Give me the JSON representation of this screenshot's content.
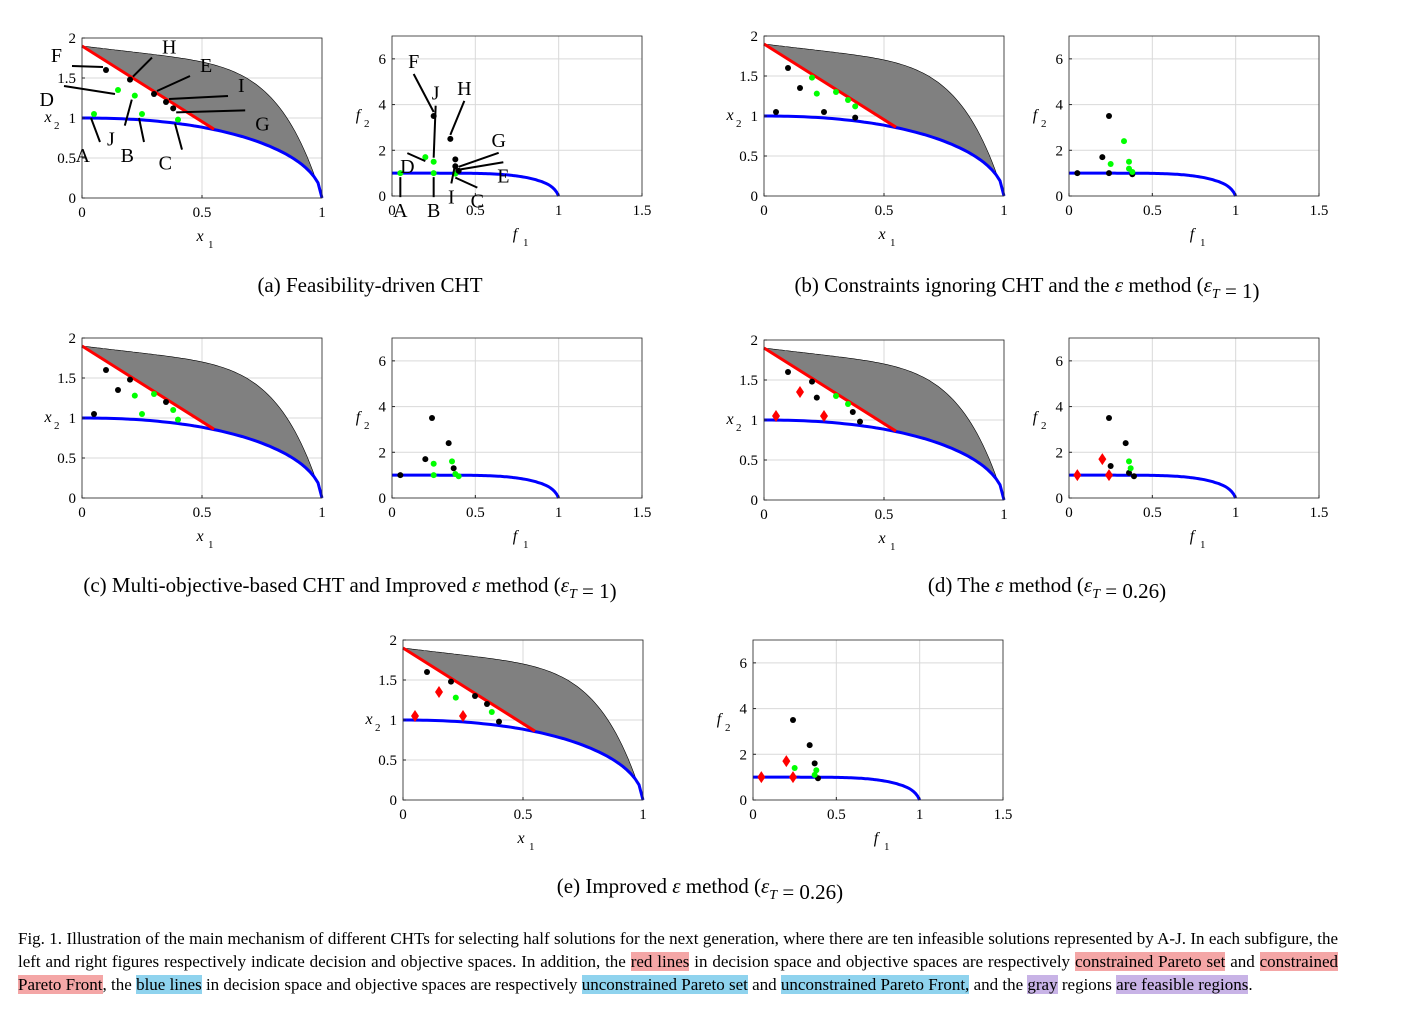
{
  "colors": {
    "constrained": "#ff0000",
    "unconstrained": "#0000ff",
    "feasible": "#808080",
    "infeasible_selected": "#00ff00",
    "infeasible_other": "#000000",
    "diamond": "#ff0000",
    "highlight_red": "#f4a6a6",
    "highlight_blue": "#8fd3ee",
    "highlight_purple": "#c8b3e6"
  },
  "axes_text": {
    "decision": {
      "xlabel": "x",
      "xlabel_sub": "1",
      "ylabel": "x",
      "ylabel_sub": "2",
      "xticks": [
        "0",
        "0.5",
        "1"
      ],
      "yticks": [
        "0",
        "0.5",
        "1",
        "1.5",
        "2"
      ]
    },
    "objective": {
      "xlabel": "f",
      "xlabel_sub": "1",
      "ylabel": "f",
      "ylabel_sub": "2",
      "xticks": [
        "0",
        "0.5",
        "1",
        "1.5"
      ],
      "yticks": [
        "0",
        "2",
        "4",
        "6"
      ]
    }
  },
  "chart_data": [
    {
      "id": "a",
      "caption": "(a) Feasibility-driven CHT",
      "decision": {
        "type": "scatter",
        "xlim": [
          0,
          1
        ],
        "ylim": [
          0,
          2
        ],
        "grid": true,
        "points": [
          {
            "label": "A",
            "x": 0.05,
            "y": 1.05,
            "c": "green"
          },
          {
            "label": "B",
            "x": 0.25,
            "y": 1.05,
            "c": "green"
          },
          {
            "label": "C",
            "x": 0.4,
            "y": 0.98,
            "c": "green"
          },
          {
            "label": "D",
            "x": 0.15,
            "y": 1.35,
            "c": "green"
          },
          {
            "label": "J",
            "x": 0.22,
            "y": 1.28,
            "c": "green"
          },
          {
            "label": "F",
            "x": 0.1,
            "y": 1.6,
            "c": "black"
          },
          {
            "label": "H",
            "x": 0.2,
            "y": 1.48,
            "c": "black"
          },
          {
            "label": "E",
            "x": 0.3,
            "y": 1.3,
            "c": "black"
          },
          {
            "label": "I",
            "x": 0.35,
            "y": 1.2,
            "c": "black"
          },
          {
            "label": "G",
            "x": 0.38,
            "y": 1.12,
            "c": "black"
          }
        ]
      },
      "objective": {
        "type": "scatter",
        "xlim": [
          0,
          1.5
        ],
        "ylim": [
          0,
          7
        ],
        "grid": true,
        "points": [
          {
            "label": "A",
            "x": 0.05,
            "y": 1.0,
            "c": "green"
          },
          {
            "label": "B",
            "x": 0.25,
            "y": 1.0,
            "c": "green"
          },
          {
            "label": "C",
            "x": 0.38,
            "y": 0.98,
            "c": "green"
          },
          {
            "label": "D",
            "x": 0.2,
            "y": 1.7,
            "c": "green"
          },
          {
            "label": "J",
            "x": 0.25,
            "y": 1.5,
            "c": "green"
          },
          {
            "label": "F",
            "x": 0.25,
            "y": 3.5,
            "c": "black"
          },
          {
            "label": "H",
            "x": 0.35,
            "y": 2.5,
            "c": "black"
          },
          {
            "label": "I",
            "x": 0.38,
            "y": 1.6,
            "c": "black"
          },
          {
            "label": "E",
            "x": 0.38,
            "y": 1.3,
            "c": "black"
          },
          {
            "label": "G",
            "x": 0.4,
            "y": 1.1,
            "c": "black"
          }
        ]
      },
      "annotations_decision": [
        "F",
        "H",
        "E",
        "I",
        "D",
        "G",
        "A",
        "J",
        "B",
        "C"
      ],
      "annotations_objective": [
        "F",
        "J",
        "H",
        "G",
        "D",
        "E",
        "A",
        "B",
        "I",
        "C"
      ]
    },
    {
      "id": "b",
      "caption_pre": "(b) Constraints ignoring CHT and the ",
      "caption_eps": "ε",
      "caption_mid": " method (",
      "caption_epsT": "ε",
      "caption_sub": "T",
      "caption_post": " = 1)",
      "decision": {
        "type": "scatter",
        "xlim": [
          0,
          1
        ],
        "ylim": [
          0,
          2
        ],
        "grid": true,
        "points": [
          {
            "x": 0.05,
            "y": 1.05,
            "c": "black"
          },
          {
            "x": 0.1,
            "y": 1.6,
            "c": "black"
          },
          {
            "x": 0.15,
            "y": 1.35,
            "c": "black"
          },
          {
            "x": 0.25,
            "y": 1.05,
            "c": "black"
          },
          {
            "x": 0.38,
            "y": 0.98,
            "c": "black"
          },
          {
            "x": 0.2,
            "y": 1.48,
            "c": "green"
          },
          {
            "x": 0.22,
            "y": 1.28,
            "c": "green"
          },
          {
            "x": 0.3,
            "y": 1.3,
            "c": "green"
          },
          {
            "x": 0.35,
            "y": 1.2,
            "c": "green"
          },
          {
            "x": 0.38,
            "y": 1.12,
            "c": "green"
          }
        ]
      },
      "objective": {
        "type": "scatter",
        "xlim": [
          0,
          1.5
        ],
        "ylim": [
          0,
          7
        ],
        "grid": true,
        "points": [
          {
            "x": 0.05,
            "y": 1.0,
            "c": "black"
          },
          {
            "x": 0.2,
            "y": 1.7,
            "c": "black"
          },
          {
            "x": 0.24,
            "y": 3.5,
            "c": "black"
          },
          {
            "x": 0.24,
            "y": 1.0,
            "c": "black"
          },
          {
            "x": 0.38,
            "y": 0.95,
            "c": "black"
          },
          {
            "x": 0.25,
            "y": 1.4,
            "c": "green"
          },
          {
            "x": 0.33,
            "y": 2.4,
            "c": "green"
          },
          {
            "x": 0.36,
            "y": 1.5,
            "c": "green"
          },
          {
            "x": 0.36,
            "y": 1.2,
            "c": "green"
          },
          {
            "x": 0.38,
            "y": 1.05,
            "c": "green"
          }
        ]
      }
    },
    {
      "id": "c",
      "caption_pre": "(c) Multi-objective-based CHT and Improved ",
      "caption_eps": "ε",
      "caption_mid": " method (",
      "caption_epsT": "ε",
      "caption_sub": "T",
      "caption_post": " = 1)",
      "decision": {
        "type": "scatter",
        "xlim": [
          0,
          1
        ],
        "ylim": [
          0,
          2
        ],
        "grid": true,
        "points": [
          {
            "x": 0.05,
            "y": 1.05,
            "c": "black"
          },
          {
            "x": 0.1,
            "y": 1.6,
            "c": "black"
          },
          {
            "x": 0.15,
            "y": 1.35,
            "c": "black"
          },
          {
            "x": 0.2,
            "y": 1.48,
            "c": "black"
          },
          {
            "x": 0.35,
            "y": 1.2,
            "c": "black"
          },
          {
            "x": 0.22,
            "y": 1.28,
            "c": "green"
          },
          {
            "x": 0.25,
            "y": 1.05,
            "c": "green"
          },
          {
            "x": 0.3,
            "y": 1.3,
            "c": "green"
          },
          {
            "x": 0.38,
            "y": 1.1,
            "c": "green"
          },
          {
            "x": 0.4,
            "y": 0.98,
            "c": "green"
          }
        ]
      },
      "objective": {
        "type": "scatter",
        "xlim": [
          0,
          1.5
        ],
        "ylim": [
          0,
          7
        ],
        "grid": true,
        "points": [
          {
            "x": 0.05,
            "y": 1.0,
            "c": "black"
          },
          {
            "x": 0.2,
            "y": 1.7,
            "c": "black"
          },
          {
            "x": 0.24,
            "y": 3.5,
            "c": "black"
          },
          {
            "x": 0.34,
            "y": 2.4,
            "c": "black"
          },
          {
            "x": 0.37,
            "y": 1.3,
            "c": "black"
          },
          {
            "x": 0.25,
            "y": 1.5,
            "c": "green"
          },
          {
            "x": 0.25,
            "y": 1.0,
            "c": "green"
          },
          {
            "x": 0.36,
            "y": 1.6,
            "c": "green"
          },
          {
            "x": 0.38,
            "y": 1.05,
            "c": "green"
          },
          {
            "x": 0.4,
            "y": 0.95,
            "c": "green"
          }
        ]
      }
    },
    {
      "id": "d",
      "caption_pre": "(d) The ",
      "caption_eps": "ε",
      "caption_mid": " method (",
      "caption_epsT": "ε",
      "caption_sub": "T",
      "caption_post": " = 0.26)",
      "decision": {
        "type": "scatter",
        "xlim": [
          0,
          1
        ],
        "ylim": [
          0,
          2
        ],
        "grid": true,
        "points": [
          {
            "x": 0.05,
            "y": 1.05,
            "c": "diamond"
          },
          {
            "x": 0.15,
            "y": 1.35,
            "c": "diamond"
          },
          {
            "x": 0.25,
            "y": 1.05,
            "c": "diamond"
          },
          {
            "x": 0.1,
            "y": 1.6,
            "c": "black"
          },
          {
            "x": 0.2,
            "y": 1.48,
            "c": "black"
          },
          {
            "x": 0.22,
            "y": 1.28,
            "c": "black"
          },
          {
            "x": 0.37,
            "y": 1.1,
            "c": "black"
          },
          {
            "x": 0.4,
            "y": 0.98,
            "c": "black"
          },
          {
            "x": 0.3,
            "y": 1.3,
            "c": "green"
          },
          {
            "x": 0.35,
            "y": 1.2,
            "c": "green"
          }
        ]
      },
      "objective": {
        "type": "scatter",
        "xlim": [
          0,
          1.5
        ],
        "ylim": [
          0,
          7
        ],
        "grid": true,
        "points": [
          {
            "x": 0.05,
            "y": 1.0,
            "c": "diamond"
          },
          {
            "x": 0.2,
            "y": 1.7,
            "c": "diamond"
          },
          {
            "x": 0.24,
            "y": 1.0,
            "c": "diamond"
          },
          {
            "x": 0.24,
            "y": 3.5,
            "c": "black"
          },
          {
            "x": 0.25,
            "y": 1.4,
            "c": "black"
          },
          {
            "x": 0.34,
            "y": 2.4,
            "c": "black"
          },
          {
            "x": 0.36,
            "y": 1.1,
            "c": "black"
          },
          {
            "x": 0.39,
            "y": 0.95,
            "c": "black"
          },
          {
            "x": 0.36,
            "y": 1.6,
            "c": "green"
          },
          {
            "x": 0.37,
            "y": 1.3,
            "c": "green"
          }
        ]
      }
    },
    {
      "id": "e",
      "caption_pre": "(e) Improved ",
      "caption_eps": "ε",
      "caption_mid": " method (",
      "caption_epsT": "ε",
      "caption_sub": "T",
      "caption_post": " = 0.26)",
      "decision": {
        "type": "scatter",
        "xlim": [
          0,
          1
        ],
        "ylim": [
          0,
          2
        ],
        "grid": true,
        "points": [
          {
            "x": 0.05,
            "y": 1.05,
            "c": "diamond"
          },
          {
            "x": 0.15,
            "y": 1.35,
            "c": "diamond"
          },
          {
            "x": 0.25,
            "y": 1.05,
            "c": "diamond"
          },
          {
            "x": 0.1,
            "y": 1.6,
            "c": "black"
          },
          {
            "x": 0.2,
            "y": 1.48,
            "c": "black"
          },
          {
            "x": 0.3,
            "y": 1.3,
            "c": "black"
          },
          {
            "x": 0.35,
            "y": 1.2,
            "c": "black"
          },
          {
            "x": 0.4,
            "y": 0.98,
            "c": "black"
          },
          {
            "x": 0.22,
            "y": 1.28,
            "c": "green"
          },
          {
            "x": 0.37,
            "y": 1.1,
            "c": "green"
          }
        ]
      },
      "objective": {
        "type": "scatter",
        "xlim": [
          0,
          1.5
        ],
        "ylim": [
          0,
          7
        ],
        "grid": true,
        "points": [
          {
            "x": 0.05,
            "y": 1.0,
            "c": "diamond"
          },
          {
            "x": 0.2,
            "y": 1.7,
            "c": "diamond"
          },
          {
            "x": 0.24,
            "y": 1.0,
            "c": "diamond"
          },
          {
            "x": 0.24,
            "y": 3.5,
            "c": "black"
          },
          {
            "x": 0.34,
            "y": 2.4,
            "c": "black"
          },
          {
            "x": 0.37,
            "y": 1.6,
            "c": "black"
          },
          {
            "x": 0.39,
            "y": 0.95,
            "c": "black"
          },
          {
            "x": 0.25,
            "y": 1.4,
            "c": "green"
          },
          {
            "x": 0.37,
            "y": 1.1,
            "c": "green"
          },
          {
            "x": 0.38,
            "y": 1.3,
            "c": "green"
          }
        ]
      }
    }
  ],
  "caption": {
    "p1": "Fig. 1.  Illustration of the main mechanism of different CHTs for selecting half solutions for the next generation, where there are ten infeasible solutions represented by A-J. In each subfigure, the left and right figures respectively indicate decision and objective spaces. In addition, the ",
    "red_lines": "red lines",
    "p2": " in decision space and objective spaces are respectively ",
    "constrained_set": "constrained Pareto set",
    "p3": " and ",
    "constrained_front": "constrained Pareto Front",
    "p4": ", the ",
    "blue_lines": "blue lines",
    "p5": " in decision space and objective spaces are respectively ",
    "unconstrained_set": "unconstrained Pareto set",
    "p6": " and ",
    "unconstrained_front": "unconstrained Pareto Front,",
    "p7": " and the ",
    "gray": "gray",
    "p8": " regions ",
    "feasible_regions": "are feasible regions",
    "p9": "."
  }
}
